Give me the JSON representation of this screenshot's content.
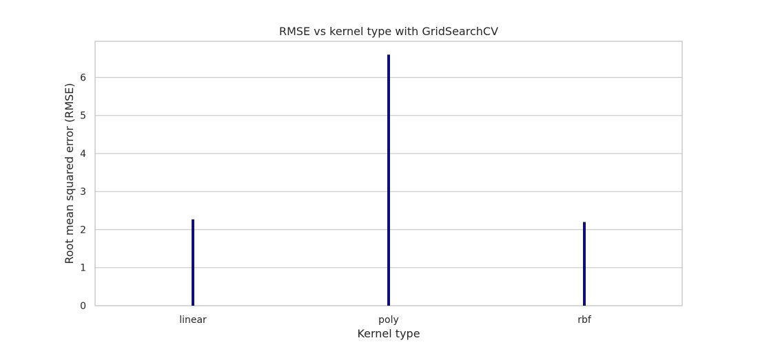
{
  "chart_data": {
    "type": "bar",
    "title": "RMSE vs kernel type with GridSearchCV",
    "xlabel": "Kernel type",
    "ylabel": "Root mean squared error (RMSE)",
    "categories": [
      "linear",
      "poly",
      "rbf"
    ],
    "values": [
      2.27,
      6.6,
      2.2
    ],
    "ylim": [
      0,
      6.95
    ],
    "yticks": [
      0,
      1,
      2,
      3,
      4,
      5,
      6
    ],
    "grid": true,
    "legend": "none",
    "bar_color": "#10106e",
    "grid_color": "#cccccc",
    "frame_color": "#cccccc"
  }
}
